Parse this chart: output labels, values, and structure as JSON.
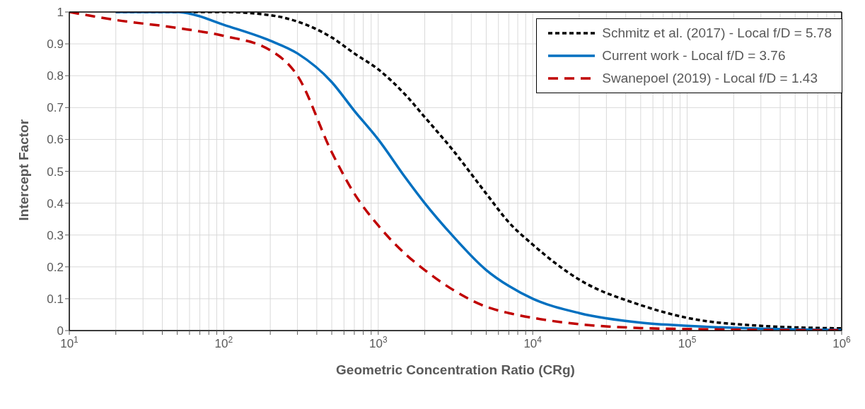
{
  "chart_data": {
    "type": "line",
    "xlabel": "Geometric Concentration Ratio (CRg)",
    "ylabel": "Intercept Factor",
    "log": "x",
    "grid": true,
    "legend": "top right",
    "xlim": [
      10,
      1000000
    ],
    "ylim": [
      0,
      1
    ],
    "xticks": [
      {
        "value": 10,
        "label": "10$^{1}$"
      },
      {
        "value": 20,
        "label": null
      },
      {
        "value": 30,
        "label": null
      },
      {
        "value": 40,
        "label": null
      },
      {
        "value": 50,
        "label": null
      },
      {
        "value": 60,
        "label": null
      },
      {
        "value": 70,
        "label": null
      },
      {
        "value": 80,
        "label": null
      },
      {
        "value": 90,
        "label": null
      },
      {
        "value": 100,
        "label": "10$^{2}$"
      },
      {
        "value": 200,
        "label": null
      },
      {
        "value": 300,
        "label": null
      },
      {
        "value": 400,
        "label": null
      },
      {
        "value": 500,
        "label": null
      },
      {
        "value": 600,
        "label": null
      },
      {
        "value": 700,
        "label": null
      },
      {
        "value": 800,
        "label": null
      },
      {
        "value": 900,
        "label": null
      },
      {
        "value": 1000,
        "label": "10$^{3}$"
      },
      {
        "value": 2000,
        "label": null
      },
      {
        "value": 3000,
        "label": null
      },
      {
        "value": 4000,
        "label": null
      },
      {
        "value": 5000,
        "label": null
      },
      {
        "value": 6000,
        "label": null
      },
      {
        "value": 7000,
        "label": null
      },
      {
        "value": 8000,
        "label": null
      },
      {
        "value": 9000,
        "label": null
      },
      {
        "value": 10000,
        "label": "10$^{4}$"
      },
      {
        "value": 20000,
        "label": null
      },
      {
        "value": 30000,
        "label": null
      },
      {
        "value": 40000,
        "label": null
      },
      {
        "value": 50000,
        "label": null
      },
      {
        "value": 60000,
        "label": null
      },
      {
        "value": 70000,
        "label": null
      },
      {
        "value": 80000,
        "label": null
      },
      {
        "value": 90000,
        "label": null
      },
      {
        "value": 100000,
        "label": "10$^{5}$"
      },
      {
        "value": 200000,
        "label": null
      },
      {
        "value": 300000,
        "label": null
      },
      {
        "value": 400000,
        "label": null
      },
      {
        "value": 500000,
        "label": null
      },
      {
        "value": 600000,
        "label": null
      },
      {
        "value": 700000,
        "label": null
      },
      {
        "value": 800000,
        "label": null
      },
      {
        "value": 900000,
        "label": null
      },
      {
        "value": 1000000,
        "label": "10$^{6}$"
      }
    ],
    "yticks": [
      0,
      0.1,
      0.2,
      0.3,
      0.4,
      0.5,
      0.6,
      0.7,
      0.8,
      0.9,
      1
    ],
    "series": [
      {
        "name": "Schmitz et al. (2017) - Local f/D = 5.78",
        "color": "#000000",
        "line_style": "dotted",
        "x": [
          20,
          50,
          100,
          200,
          300,
          500,
          700,
          1000,
          1500,
          2000,
          3000,
          5000,
          7000,
          10000,
          20000,
          50000,
          100000,
          300000,
          1000000
        ],
        "values": [
          1,
          1,
          1,
          0.99,
          0.97,
          0.92,
          0.87,
          0.82,
          0.74,
          0.67,
          0.57,
          0.43,
          0.34,
          0.27,
          0.16,
          0.08,
          0.04,
          0.015,
          0.007
        ]
      },
      {
        "name": "Current work - Local f/D = 3.76",
        "color": "#0070c0",
        "line_style": "solid",
        "x": [
          20,
          50,
          60,
          100,
          200,
          300,
          500,
          700,
          1000,
          1500,
          2000,
          3000,
          5000,
          7000,
          10000,
          20000,
          50000,
          100000,
          300000,
          1000000
        ],
        "values": [
          1,
          1,
          0.995,
          0.96,
          0.91,
          0.87,
          0.78,
          0.69,
          0.6,
          0.48,
          0.4,
          0.3,
          0.19,
          0.14,
          0.1,
          0.055,
          0.025,
          0.015,
          0.006,
          0.002
        ]
      },
      {
        "name": "Swanepoel (2019) - Local f/D = 1.43",
        "color": "#c00000",
        "line_style": "dashed",
        "x": [
          10,
          20,
          50,
          100,
          200,
          300,
          500,
          700,
          1000,
          1500,
          2000,
          3000,
          5000,
          7000,
          10000,
          20000,
          50000,
          100000,
          300000,
          1000000
        ],
        "values": [
          1,
          0.975,
          0.95,
          0.925,
          0.88,
          0.8,
          0.56,
          0.43,
          0.33,
          0.24,
          0.19,
          0.13,
          0.075,
          0.055,
          0.04,
          0.02,
          0.008,
          0.005,
          0.002,
          0.001
        ]
      }
    ]
  }
}
